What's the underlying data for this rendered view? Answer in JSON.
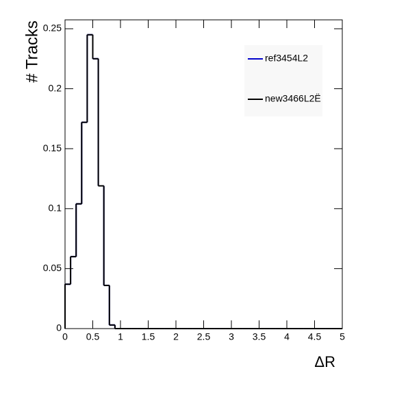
{
  "chart_data": {
    "type": "histogram",
    "xlabel": "ΔR",
    "ylabel": "# Tracks",
    "bins": [
      0,
      0.1,
      0.2,
      0.3,
      0.4,
      0.5,
      0.6,
      0.7,
      0.8,
      0.9,
      1,
      1.1,
      1.2,
      1.3,
      1.4,
      1.5,
      1.6,
      1.7,
      1.8,
      1.9,
      2,
      2.1,
      2.2,
      2.3,
      2.4,
      2.5,
      2.6,
      2.7,
      2.8,
      2.9,
      3,
      3.1,
      3.2,
      3.3,
      3.4,
      3.5,
      3.6,
      3.7,
      3.8,
      3.9,
      4,
      4.1,
      4.2,
      4.3,
      4.4,
      4.5,
      4.6,
      4.7,
      4.8,
      4.9,
      5
    ],
    "series": [
      {
        "name": "ref3454L2",
        "color": "#0000cc",
        "values": [
          0.037,
          0.06,
          0.104,
          0.172,
          0.245,
          0.225,
          0.119,
          0.036,
          0.003,
          0,
          0,
          0,
          0,
          0,
          0,
          0,
          0,
          0,
          0,
          0,
          0,
          0,
          0,
          0,
          0,
          0,
          0,
          0,
          0,
          0,
          0,
          0,
          0,
          0,
          0,
          0,
          0,
          0,
          0,
          0,
          0,
          0,
          0,
          0,
          0,
          0,
          0,
          0,
          0,
          0
        ]
      },
      {
        "name": "new3466L2Ë",
        "color": "#000000",
        "values": [
          0.037,
          0.06,
          0.104,
          0.172,
          0.245,
          0.225,
          0.119,
          0.036,
          0.003,
          0,
          0,
          0,
          0,
          0,
          0,
          0,
          0,
          0,
          0,
          0,
          0,
          0,
          0,
          0,
          0,
          0,
          0,
          0,
          0,
          0,
          0,
          0,
          0,
          0,
          0,
          0,
          0,
          0,
          0,
          0,
          0,
          0,
          0,
          0,
          0,
          0,
          0,
          0,
          0,
          0
        ]
      }
    ],
    "xlim": [
      0,
      5
    ],
    "ylim": [
      0,
      0.25
    ],
    "xticks": [
      0,
      0.5,
      1,
      1.5,
      2,
      2.5,
      3,
      3.5,
      4,
      4.5,
      5
    ],
    "yticks": [
      0,
      0.05,
      0.1,
      0.15,
      0.2,
      0.25
    ],
    "legend": "top-right"
  }
}
